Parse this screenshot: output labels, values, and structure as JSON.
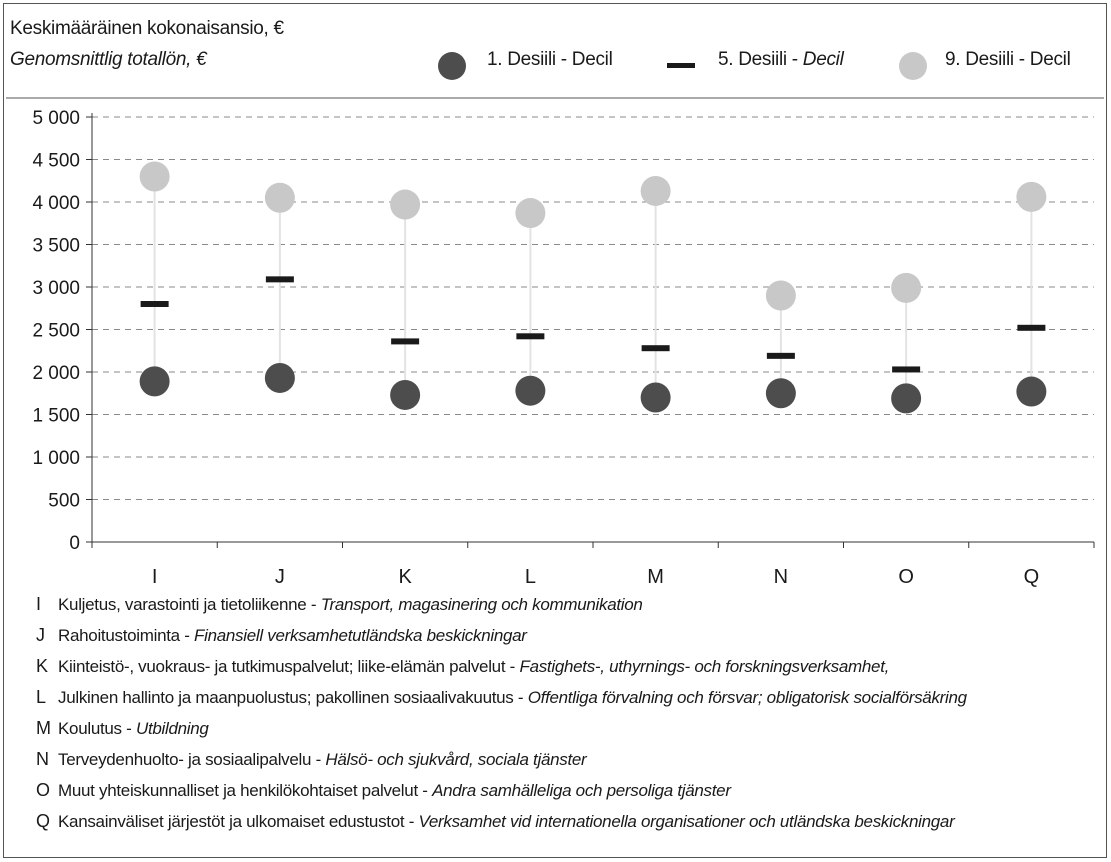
{
  "chart_data": {
    "type": "scatter",
    "ylabel": "Keskimääräinen kokonaisansio, €",
    "ylabel_sv": "Genomsnittlig totallön, €",
    "ylim": [
      0,
      5000
    ],
    "yticks": [
      0,
      500,
      1000,
      1500,
      2000,
      2500,
      3000,
      3500,
      4000,
      4500,
      5000
    ],
    "ytick_labels": [
      "0",
      "500",
      "1 000",
      "1 500",
      "2 000",
      "2 500",
      "3 000",
      "3 500",
      "4 000",
      "4 500",
      "5 000"
    ],
    "grid": true,
    "legend_position": "top",
    "categories": [
      "I",
      "J",
      "K",
      "L",
      "M",
      "N",
      "O",
      "Q"
    ],
    "series": [
      {
        "name": "1. Desiili - Decil",
        "name_fi": "1. Desiili - ",
        "name_sv": "Decil",
        "marker": "circle",
        "color": "#4d4d4d",
        "values": [
          1890,
          1930,
          1730,
          1780,
          1700,
          1750,
          1690,
          1770
        ]
      },
      {
        "name": "5. Desiili - Decil",
        "name_fi": "5. Desiili - ",
        "name_sv": "Decil",
        "marker": "dash",
        "color": "#1a1a1a",
        "values": [
          2800,
          3090,
          2360,
          2420,
          2280,
          2190,
          2030,
          2520
        ]
      },
      {
        "name": "9. Desiili - Decil",
        "name_fi": "9. Desiili - ",
        "name_sv": "Decil",
        "marker": "circle",
        "color": "#c8c8c8",
        "values": [
          4300,
          4050,
          3970,
          3870,
          4130,
          2900,
          2990,
          4060
        ]
      }
    ]
  },
  "notes": [
    {
      "code": "I",
      "fi": "Kuljetus, varastointi ja tietoliikenne - ",
      "sv": "Transport, magasinering och kommunikation"
    },
    {
      "code": "J",
      "fi": "Rahoitustoiminta - ",
      "sv": "Finansiell verksamhetutländska beskickningar"
    },
    {
      "code": "K",
      "fi": "Kiinteistö-, vuokraus- ja tutkimuspalvelut; liike-elämän palvelut - ",
      "sv": "Fastighets-, uthyrnings- och forskningsverksamhet,"
    },
    {
      "code": "L",
      "fi": "Julkinen hallinto ja maanpuolustus; pakollinen sosiaalivakuutus - ",
      "sv": "Offentliga förvalning och försvar; obligatorisk socialförsäkring"
    },
    {
      "code": "M",
      "fi": "Koulutus - ",
      "sv": "Utbildning"
    },
    {
      "code": "N",
      "fi": "Terveydenhuolto- ja sosiaalipalvelu - ",
      "sv": "Hälsö- och sjukvård, sociala tjänster"
    },
    {
      "code": "O",
      "fi": "Muut yhteiskunnalliset ja henkilökohtaiset palvelut - ",
      "sv": "Andra samhälleliga och persoliga tjänster"
    },
    {
      "code": "Q",
      "fi": "Kansainväliset järjestöt ja ulkomaiset edustustot - ",
      "sv": "Verksamhet vid internationella organisationer och utländska beskickningar"
    }
  ]
}
